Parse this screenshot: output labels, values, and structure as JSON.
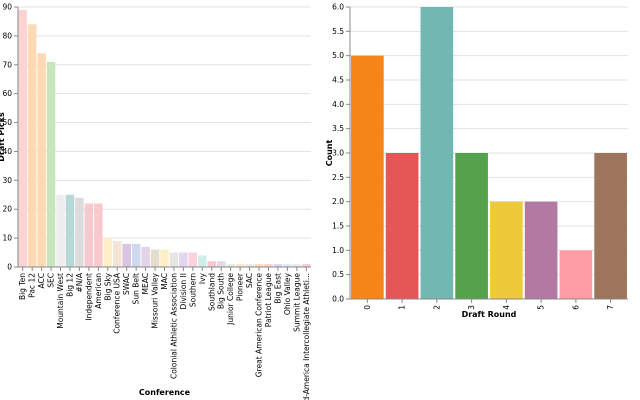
{
  "chart_data": [
    {
      "type": "bar",
      "xlabel": "Conference",
      "ylabel": "Draft Picks",
      "ylim": [
        0,
        90
      ],
      "yticks": [
        0,
        10,
        20,
        30,
        40,
        50,
        60,
        70,
        80,
        90
      ],
      "grid": true,
      "categories": [
        "Big Ten",
        "Pac 12",
        "ACC",
        "SEC",
        "Mountain West",
        "Big 12",
        "#N/A",
        "Independent",
        "American",
        "Big Sky",
        "Conference USA",
        "SWAC",
        "Sun Belt",
        "MEAC",
        "Missouri Valley",
        "MAC",
        "Colonial Athletic Association",
        "Division II",
        "Southern",
        "Ivy",
        "Southland",
        "Big South",
        "Junior College",
        "Pioneer",
        "SAC",
        "Great American Conference",
        "Patriot League",
        "Big East",
        "Ohio Valley",
        "Summit League",
        "Mid-America Intercollegiate Athleti..."
      ],
      "values": [
        89,
        84,
        74,
        71,
        25,
        25,
        24,
        22,
        22,
        10,
        9,
        8,
        8,
        7,
        6,
        6,
        5,
        5,
        5,
        4,
        2,
        2,
        1,
        1,
        1,
        1,
        1,
        1,
        1,
        1,
        1
      ],
      "colors": [
        "#fcd3d3",
        "#fdd9b4",
        "#fdd9b4",
        "#c7e6c0",
        "#eeeeee",
        "#b5d9d6",
        "#dcdcdc",
        "#f7c9cf",
        "#f7c9cf",
        "#fdf0c6",
        "#f4e4d6",
        "#d9c4e4",
        "#cfd9ee",
        "#e4d4e8",
        "#e4dccd",
        "#fdf0c6",
        "#e5e5e5",
        "#e2d6f0",
        "#f9d2de",
        "#cfeee8",
        "#f7c9cf",
        "#e8d8e6",
        "#dff0d8",
        "#fde4cc",
        "#e8e8e8",
        "#fdd9b4",
        "#f7d4c8",
        "#dcd4ee",
        "#dde9f5",
        "#e9e9e9",
        "#f7c9cf"
      ]
    },
    {
      "type": "bar",
      "xlabel": "Draft Round",
      "ylabel": "Count",
      "ylim": [
        0,
        6
      ],
      "yticks": [
        "0.0",
        "0.5",
        "1.0",
        "1.5",
        "2.0",
        "2.5",
        "3.0",
        "3.5",
        "4.0",
        "4.5",
        "5.0",
        "5.5",
        "6.0"
      ],
      "grid": true,
      "categories": [
        "0",
        "1",
        "2",
        "3",
        "4",
        "5",
        "6",
        "7"
      ],
      "values": [
        5,
        3,
        6,
        3,
        2,
        2,
        1,
        3
      ],
      "colors": [
        "#f58518",
        "#e45756",
        "#72b7b2",
        "#54a24b",
        "#eeca3b",
        "#b279a2",
        "#ff9da6",
        "#9d755d"
      ]
    }
  ]
}
